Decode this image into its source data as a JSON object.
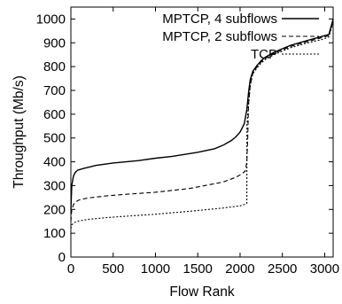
{
  "chart_data": {
    "type": "line",
    "title": "",
    "xlabel": "Flow Rank",
    "ylabel": "Throughput (Mb/s)",
    "xlim": [
      0,
      3100
    ],
    "ylim": [
      0,
      1050
    ],
    "xticks": [
      0,
      500,
      1000,
      1500,
      2000,
      2500,
      3000
    ],
    "yticks": [
      0,
      100,
      200,
      300,
      400,
      500,
      600,
      700,
      800,
      900,
      1000
    ],
    "grid": false,
    "legend_position": "top-right",
    "series": [
      {
        "name": "MPTCP, 4 subflows",
        "style": "solid",
        "x": [
          0,
          10,
          30,
          50,
          80,
          150,
          300,
          500,
          800,
          1000,
          1200,
          1500,
          1700,
          1800,
          1900,
          1950,
          2000,
          2050,
          2080,
          2100,
          2120,
          2150,
          2200,
          2250,
          2300,
          2400,
          2500,
          2600,
          2700,
          2800,
          2900,
          2950,
          3000,
          3050,
          3100
        ],
        "y": [
          200,
          300,
          340,
          355,
          365,
          372,
          385,
          395,
          405,
          415,
          423,
          440,
          455,
          470,
          490,
          505,
          525,
          560,
          620,
          690,
          745,
          780,
          805,
          825,
          840,
          860,
          875,
          890,
          900,
          910,
          920,
          925,
          930,
          935,
          1000
        ]
      },
      {
        "name": "MPTCP, 2 subflows",
        "style": "dashed",
        "x": [
          0,
          10,
          30,
          60,
          100,
          200,
          400,
          600,
          1000,
          1400,
          1800,
          1950,
          2000,
          2060,
          2080,
          2090,
          2100,
          2120,
          2150,
          2200,
          2250,
          2300,
          2400,
          2500,
          2600,
          2700,
          2800,
          2900,
          2950,
          3000,
          3050,
          3100
        ],
        "y": [
          150,
          200,
          220,
          232,
          240,
          248,
          256,
          262,
          272,
          288,
          315,
          335,
          345,
          360,
          400,
          500,
          640,
          720,
          770,
          800,
          820,
          835,
          855,
          870,
          885,
          895,
          905,
          915,
          920,
          925,
          930,
          990
        ]
      },
      {
        "name": "TCP",
        "style": "dotted",
        "x": [
          0,
          10,
          30,
          60,
          100,
          200,
          400,
          600,
          1000,
          1400,
          1800,
          2000,
          2060,
          2080,
          2081,
          2100,
          2120,
          2150,
          2200,
          2250,
          2300,
          2400,
          2500,
          2600,
          2700,
          2800,
          2900,
          2950,
          3000,
          3050,
          3100
        ],
        "y": [
          120,
          135,
          142,
          148,
          152,
          158,
          165,
          170,
          180,
          192,
          206,
          215,
          222,
          225,
          555,
          640,
          720,
          770,
          795,
          815,
          830,
          850,
          865,
          880,
          890,
          900,
          908,
          912,
          918,
          925,
          985
        ]
      }
    ]
  }
}
